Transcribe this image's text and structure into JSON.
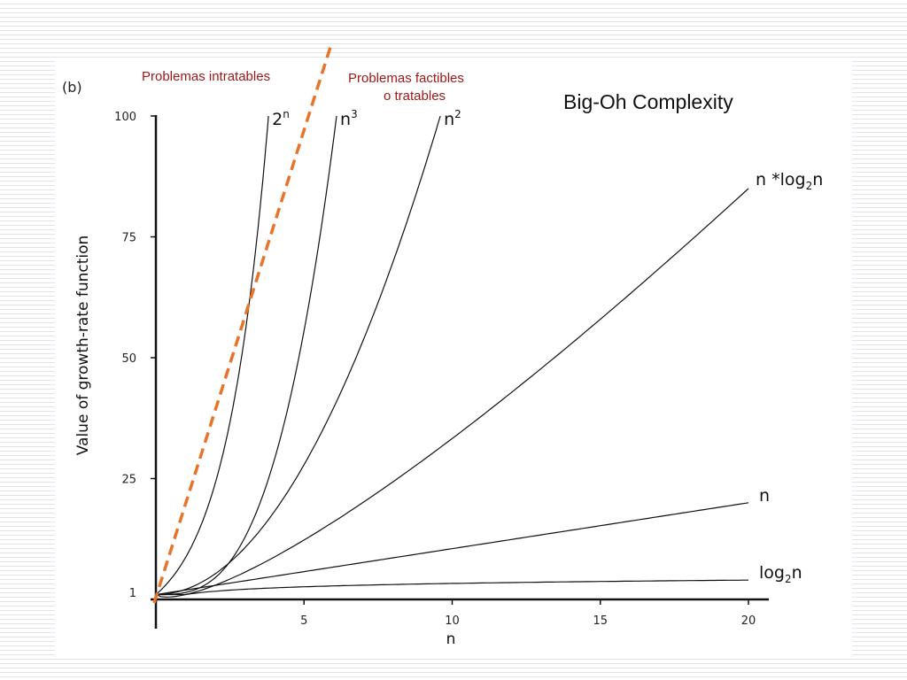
{
  "slide": {
    "panel_label": "(b)",
    "title": "Big-Oh Complexity",
    "annotation_left": "Problemas intratables",
    "annotation_right_line1": "Problemas factibles",
    "annotation_right_line2": "o tratables",
    "divider_color": "#e8732b"
  },
  "chart_data": {
    "type": "line",
    "title": "Big-Oh Complexity",
    "xlabel": "n",
    "ylabel": "Value of growth-rate function",
    "xlim": [
      0,
      20
    ],
    "ylim": [
      0,
      100
    ],
    "x_ticks": [
      5,
      10,
      15,
      20
    ],
    "y_ticks": [
      1,
      25,
      50,
      75,
      100
    ],
    "grid": false,
    "series": [
      {
        "name": "2n",
        "label_main": "2",
        "label_sup": "n",
        "label_sub": "",
        "label_tail": "",
        "function": "exp2",
        "x_max": 3.8,
        "end_value": 100
      },
      {
        "name": "n3",
        "label_main": "n",
        "label_sup": "3",
        "label_sub": "",
        "label_tail": "",
        "function": "cube",
        "x_max": 6.1,
        "end_value": 100
      },
      {
        "name": "n2",
        "label_main": "n",
        "label_sup": "2",
        "label_sub": "",
        "label_tail": "",
        "function": "square",
        "x_max": 9.6,
        "end_value": 100
      },
      {
        "name": "n*log2n",
        "label_main": "n ",
        "label_star": "*",
        "label_log": "log",
        "label_sub": "2",
        "label_tail": "n",
        "function": "nlogn",
        "x_max": 20,
        "end_value": 85
      },
      {
        "name": "n",
        "label_main": "n",
        "label_sub": "",
        "label_tail": "",
        "function": "linear",
        "x_max": 20,
        "end_value": 20
      },
      {
        "name": "log2n",
        "label_main": "log",
        "label_sub": "2",
        "label_tail": "n",
        "function": "log",
        "x_max": 20,
        "end_value": 4
      }
    ]
  }
}
